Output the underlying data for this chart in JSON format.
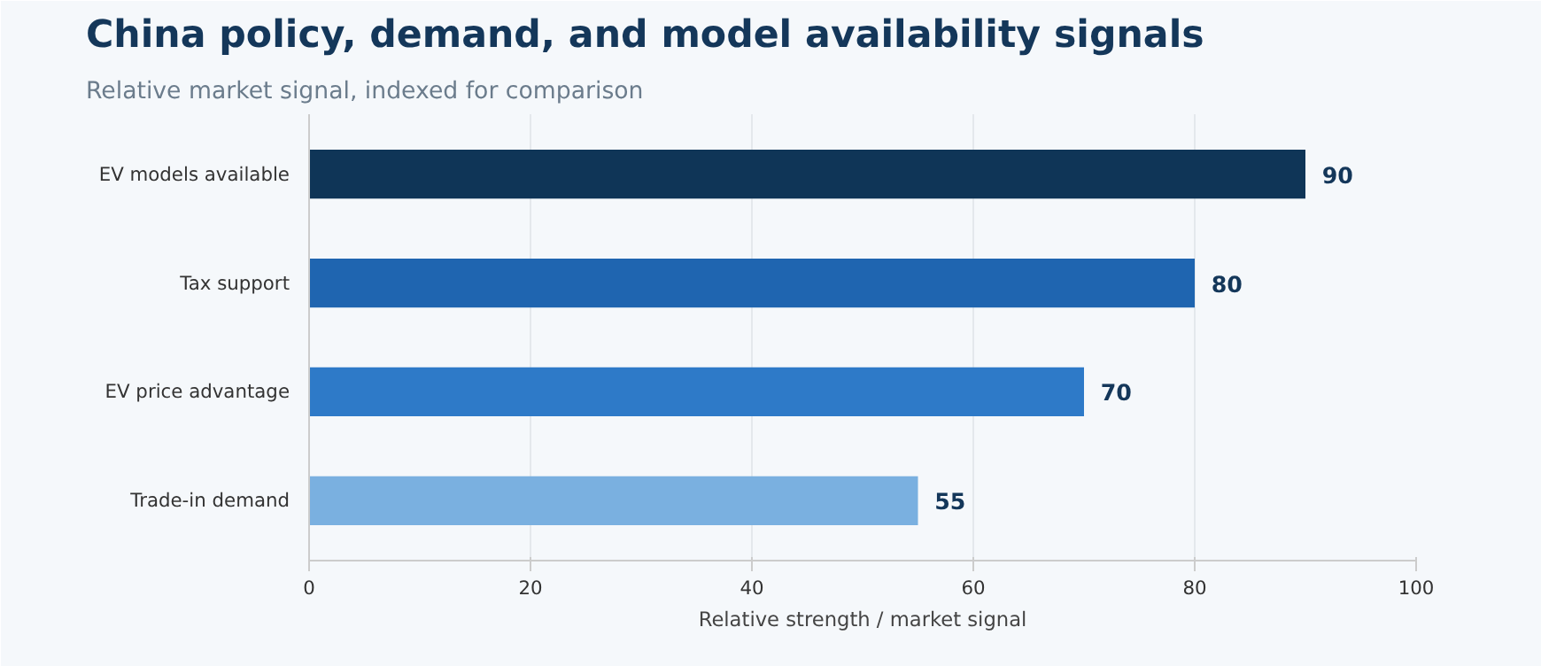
{
  "chart_data": {
    "type": "bar",
    "orientation": "horizontal",
    "title": "China policy, demand, and model availability signals",
    "subtitle": "Relative market signal, indexed for comparison",
    "xlabel": "Relative strength / market signal",
    "categories": [
      "EV models available",
      "Tax support",
      "EV price advantage",
      "Trade-in demand"
    ],
    "values": [
      90,
      80,
      70,
      55
    ],
    "colors": [
      "#0f3557",
      "#1f65b0",
      "#2e7ac8",
      "#7ab0e0"
    ],
    "xlim": [
      0,
      100
    ],
    "xticks": [
      0,
      20,
      40,
      60,
      80,
      100
    ],
    "grid": "x",
    "data_labels": true
  }
}
